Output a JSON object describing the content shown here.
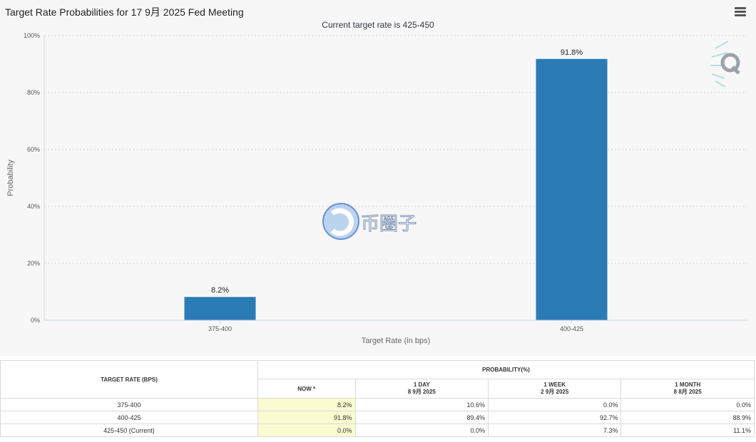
{
  "header": {
    "title": "Target Rate Probabilities for 17 9月 2025 Fed Meeting",
    "subtitle": "Current target rate is 425-450"
  },
  "chart_data": {
    "type": "bar",
    "categories": [
      "375-400",
      "400-425"
    ],
    "values": [
      8.2,
      91.8
    ],
    "data_labels": [
      "8.2%",
      "91.8%"
    ],
    "xlabel": "Target Rate (in bps)",
    "ylabel": "Probability",
    "ylim": [
      0,
      100
    ],
    "yticks": [
      0,
      20,
      40,
      60,
      80,
      100
    ],
    "ytick_labels": [
      "0%",
      "20%",
      "40%",
      "60%",
      "80%",
      "100%"
    ],
    "grid": true,
    "bar_color": "#2b7bb5"
  },
  "watermark": {
    "logo_text": "币圈子"
  },
  "table": {
    "col_target": "TARGET RATE (BPS)",
    "col_probability": "PROBABILITY(%)",
    "subheaders": [
      {
        "line1": "NOW *",
        "line2": ""
      },
      {
        "line1": "1 DAY",
        "line2": "8 9月 2025"
      },
      {
        "line1": "1 WEEK",
        "line2": "2 9月 2025"
      },
      {
        "line1": "1 MONTH",
        "line2": "8 8月 2025"
      }
    ],
    "rows": [
      {
        "rate": "375-400",
        "now": "8.2%",
        "day": "10.6%",
        "week": "0.0%",
        "month": "0.0%"
      },
      {
        "rate": "400-425",
        "now": "91.8%",
        "day": "89.4%",
        "week": "92.7%",
        "month": "88.9%"
      },
      {
        "rate": "425-450 (Current)",
        "now": "0.0%",
        "day": "0.0%",
        "week": "7.3%",
        "month": "11.1%"
      }
    ]
  }
}
